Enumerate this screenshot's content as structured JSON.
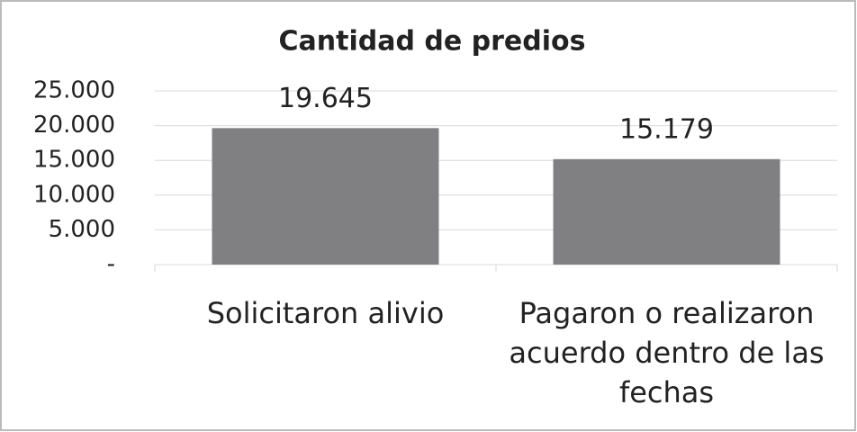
{
  "chart_data": {
    "type": "bar",
    "title": "Cantidad de predios",
    "categories": [
      "Solicitaron alivio",
      "Pagaron o realizaron acuerdo dentro de las fechas"
    ],
    "values": [
      19645,
      15179
    ],
    "value_labels": [
      "19.645",
      "15.179"
    ],
    "color": "#808083",
    "ylim": [
      0,
      25000
    ],
    "yticks": [
      {
        "value": 0,
        "label": "-"
      },
      {
        "value": 5000,
        "label": "5.000"
      },
      {
        "value": 10000,
        "label": "10.000"
      },
      {
        "value": 15000,
        "label": "15.000"
      },
      {
        "value": 20000,
        "label": "20.000"
      },
      {
        "value": 25000,
        "label": "25.000"
      }
    ],
    "grid": true
  }
}
